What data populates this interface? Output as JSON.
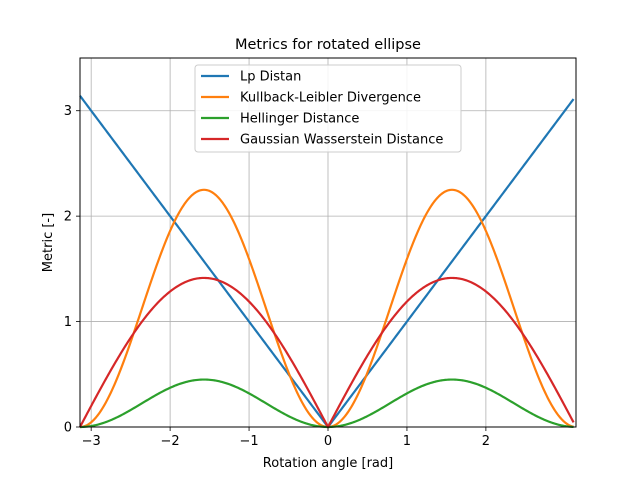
{
  "chart_data": {
    "type": "line",
    "title": "Metrics for rotated ellipse",
    "xlabel": "Rotation angle [rad]",
    "ylabel": "Metric [-]",
    "xlim": [
      -3.1416,
      3.1416
    ],
    "ylim": [
      0,
      3.5
    ],
    "xticks": [
      -3,
      -2,
      -1,
      0,
      1,
      2
    ],
    "xtick_labels": [
      "−3",
      "−2",
      "−1",
      "0",
      "1",
      "2"
    ],
    "yticks": [
      0,
      1,
      2,
      3
    ],
    "ytick_labels": [
      "0",
      "1",
      "2",
      "3"
    ],
    "grid": true,
    "legend_position": "top-center",
    "series": [
      {
        "name": "Lp Distan",
        "color": "#1f77b4",
        "formula": "abs(x)",
        "x_range": [
          -3.1416,
          3.1107
        ],
        "note_values": {
          "x": [
            -3.1416,
            -1.5708,
            0,
            1.5708,
            3.1107
          ],
          "y": [
            3.1416,
            1.5708,
            0,
            1.5708,
            3.1107
          ]
        }
      },
      {
        "name": " Kullback-Leibler Divergence",
        "color": "#ff7f0e",
        "formula": "2.25*sin(x)^2",
        "x_range": [
          -3.1416,
          3.1107
        ],
        "note_values": {
          "x": [
            -3.1416,
            -1.5708,
            0,
            1.5708,
            3.1107
          ],
          "y": [
            0,
            2.25,
            0,
            2.25,
            0.002
          ]
        }
      },
      {
        "name": "Hellinger Distance",
        "color": "#2ca02c",
        "formula": "0.45*(1-cos(2x))/2",
        "x_range": [
          -3.1416,
          3.1107
        ],
        "note_values": {
          "x": [
            -3.1416,
            -1.5708,
            0,
            1.5708,
            3.1107
          ],
          "y": [
            0,
            0.45,
            0,
            0.45,
            0
          ]
        }
      },
      {
        "name": "Gaussian Wasserstein Distance",
        "color": "#d62728",
        "formula": "1.414*abs(sin(x))",
        "x_range": [
          -3.1416,
          3.1107
        ],
        "note_values": {
          "x": [
            -3.1416,
            -1.5708,
            0,
            1.5708,
            3.1107
          ],
          "y": [
            0,
            1.414,
            0,
            1.414,
            0.044
          ]
        }
      }
    ]
  }
}
